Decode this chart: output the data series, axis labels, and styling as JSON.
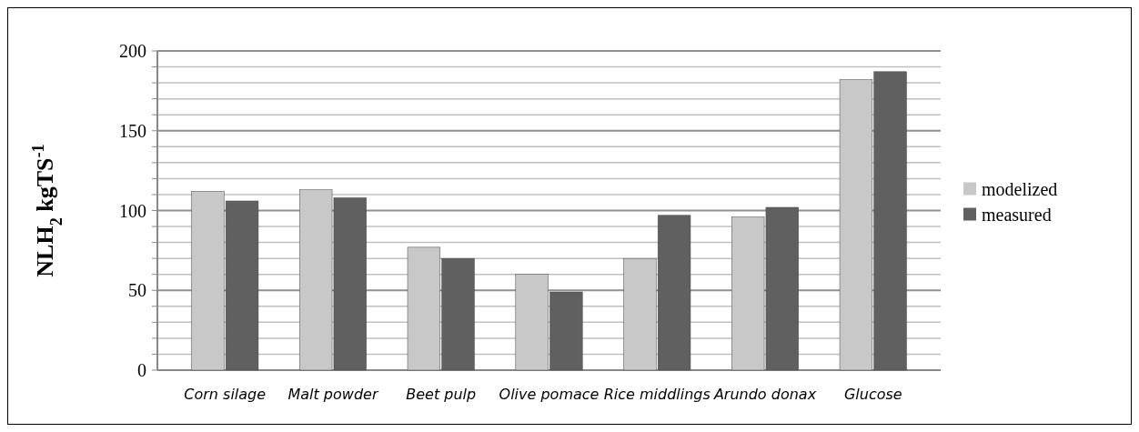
{
  "chart_data": {
    "type": "bar",
    "ylabel": "NLH$_{2}$ kgTS$^{-1}$",
    "categories": [
      "Corn silage",
      "Malt powder",
      "Beet pulp",
      "Olive pomace",
      "Rice middlings",
      "Arundo donax",
      "Glucose"
    ],
    "series": [
      {
        "name": "modelized",
        "color": "#c8c8c8",
        "values": [
          112,
          113,
          77,
          60,
          70,
          96,
          182
        ]
      },
      {
        "name": "measured",
        "color": "#606060",
        "values": [
          106,
          108,
          70,
          49,
          97,
          102,
          187
        ]
      }
    ],
    "ylim": [
      0,
      200
    ],
    "yticks": [
      0,
      {
        "value": 10,
        "label": null
      },
      {
        "value": 20,
        "label": null
      },
      {
        "value": 30,
        "label": null
      },
      {
        "value": 40,
        "label": null
      },
      50,
      {
        "value": 60,
        "label": null
      },
      {
        "value": 70,
        "label": null
      },
      {
        "value": 80,
        "label": null
      },
      {
        "value": 90,
        "label": null
      },
      100,
      {
        "value": 110,
        "label": null
      },
      {
        "value": 120,
        "label": null
      },
      {
        "value": 130,
        "label": null
      },
      {
        "value": 140,
        "label": null
      },
      150,
      {
        "value": 160,
        "label": null
      },
      {
        "value": 170,
        "label": null
      },
      {
        "value": 180,
        "label": null
      },
      {
        "value": 190,
        "label": null
      },
      200
    ],
    "grid": true,
    "legend": "right"
  }
}
